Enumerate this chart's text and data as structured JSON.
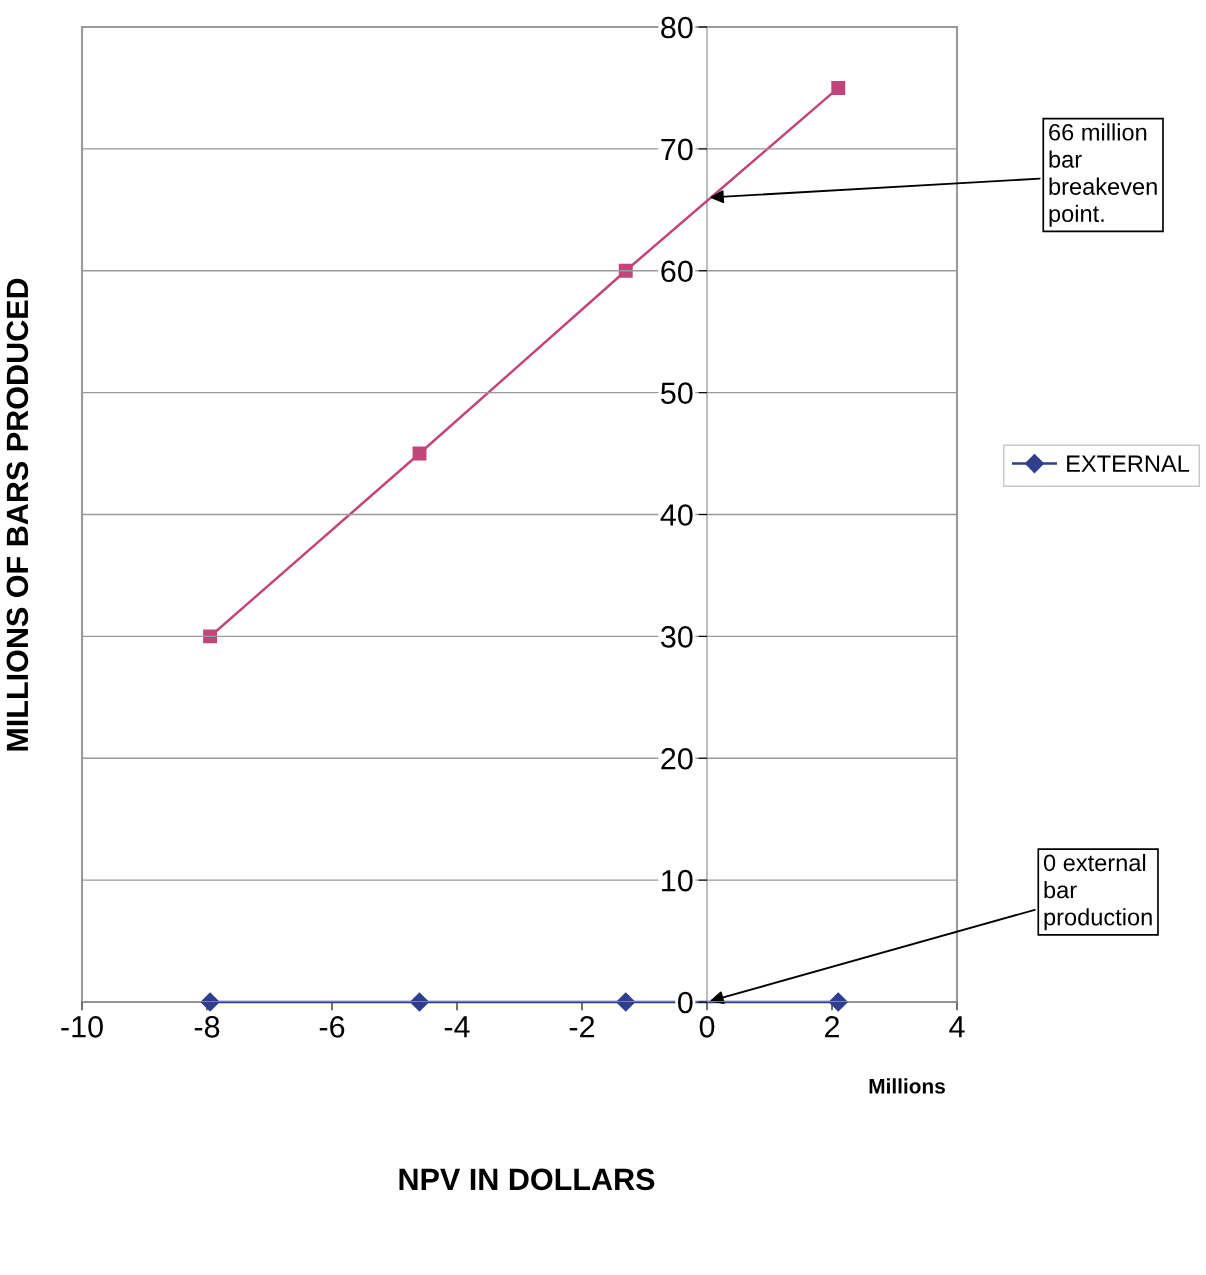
{
  "chart_data": {
    "type": "line",
    "xlabel": "NPV IN DOLLARS",
    "ylabel": "MILLIONS OF BARS PRODUCED",
    "x": [
      -7.95,
      -4.6,
      -1.3,
      2.1
    ],
    "series": [
      {
        "name": "EXTERNAL",
        "color": "#2e3f8f",
        "values": [
          0,
          0,
          0,
          0
        ],
        "marker": "diamond"
      },
      {
        "color": "#c2457a",
        "values": [
          30,
          45,
          60,
          75
        ],
        "marker": "square"
      }
    ],
    "xlim": [
      -10,
      4
    ],
    "xticks": [
      -10,
      -8,
      -6,
      -4,
      -2,
      0,
      2,
      4
    ],
    "ylim": [
      0,
      80
    ],
    "yticks": [
      0,
      10,
      20,
      30,
      40,
      50,
      60,
      70,
      80
    ],
    "grid": "y",
    "legend": "right",
    "line_style": "solid",
    "annotations": [
      {
        "text": "66 million\nbar\nbreakeven\npoint.",
        "x": 0,
        "y": 66
      },
      {
        "text": "0 external\nbar\nproduction",
        "x": 0,
        "y": 0
      },
      "Millions"
    ]
  }
}
